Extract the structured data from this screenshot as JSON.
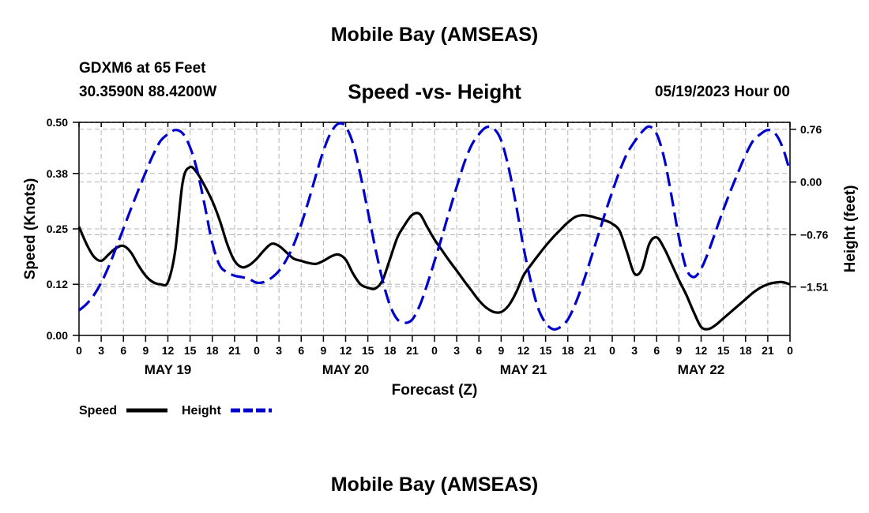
{
  "header": {
    "title": "Mobile Bay (AMSEAS)",
    "station": "GDXM6 at 65 Feet",
    "coordinates": "30.3590N  88.4200W",
    "chart_title": "Speed -vs- Height",
    "run_time": "05/19/2023 Hour 00"
  },
  "footer": {
    "title": "Mobile Bay (AMSEAS)"
  },
  "colors": {
    "speed": "#000000",
    "height": "#0000cc",
    "grid": "#b4b4b4"
  },
  "chart_data": {
    "type": "line",
    "title": "Speed -vs- Height",
    "xlabel": "Forecast (Z)",
    "ylabel": "Speed (Knots)",
    "y2label": "Height (feet)",
    "xlim": [
      0,
      96
    ],
    "ylim": [
      0,
      0.5
    ],
    "y2lim": [
      -2.21,
      0.86
    ],
    "grid": true,
    "legend_position": "bottom-left",
    "x_ticks": [
      0,
      3,
      6,
      9,
      12,
      15,
      18,
      21,
      24,
      27,
      30,
      33,
      36,
      39,
      42,
      45,
      48,
      51,
      54,
      57,
      60,
      63,
      66,
      69,
      72,
      75,
      78,
      81,
      84,
      87,
      90,
      93,
      96
    ],
    "x_tick_labels": [
      "0",
      "3",
      "6",
      "9",
      "12",
      "15",
      "18",
      "21",
      "0",
      "3",
      "6",
      "9",
      "12",
      "15",
      "18",
      "21",
      "0",
      "3",
      "6",
      "9",
      "12",
      "15",
      "18",
      "21",
      "0",
      "3",
      "6",
      "9",
      "12",
      "15",
      "18",
      "21",
      "0"
    ],
    "date_labels": [
      {
        "x": 12,
        "label": "MAY 19"
      },
      {
        "x": 36,
        "label": "MAY 20"
      },
      {
        "x": 60,
        "label": "MAY 21"
      },
      {
        "x": 84,
        "label": "MAY 22"
      }
    ],
    "y_ticks": [
      0.0,
      0.12,
      0.25,
      0.38,
      0.5
    ],
    "y_tick_labels": [
      "0.00",
      "0.12",
      "0.25",
      "0.38",
      "0.50"
    ],
    "y2_ticks": [
      0.76,
      0.0,
      -0.76,
      -1.51
    ],
    "y2_tick_labels": [
      "0.76",
      "0.00",
      "−0.76",
      "−1.51"
    ],
    "series": [
      {
        "name": "Speed",
        "axis": "left",
        "style": "solid",
        "x": [
          0,
          1,
          2,
          3,
          4,
          5,
          6,
          7,
          8,
          9,
          10,
          11,
          12,
          13,
          14,
          15,
          16,
          17,
          18,
          19,
          20,
          21,
          22,
          23,
          24,
          25,
          26,
          27,
          28,
          29,
          30,
          31,
          32,
          33,
          34,
          35,
          36,
          37,
          38,
          39,
          40,
          41,
          42,
          43,
          44,
          45,
          46,
          47,
          48,
          49,
          50,
          51,
          52,
          53,
          54,
          55,
          56,
          57,
          58,
          59,
          60,
          61,
          62,
          63,
          64,
          65,
          66,
          67,
          68,
          69,
          70,
          71,
          72,
          73,
          74,
          75,
          76,
          77,
          78,
          79,
          80,
          81,
          82,
          83,
          84,
          85,
          86,
          87,
          88,
          89,
          90,
          91,
          92,
          93,
          94,
          95,
          96
        ],
        "values": [
          0.255,
          0.215,
          0.185,
          0.175,
          0.19,
          0.205,
          0.21,
          0.195,
          0.165,
          0.14,
          0.125,
          0.12,
          0.125,
          0.2,
          0.36,
          0.395,
          0.38,
          0.35,
          0.315,
          0.27,
          0.215,
          0.175,
          0.16,
          0.165,
          0.18,
          0.2,
          0.215,
          0.21,
          0.195,
          0.18,
          0.175,
          0.17,
          0.168,
          0.175,
          0.185,
          0.19,
          0.178,
          0.145,
          0.12,
          0.112,
          0.11,
          0.13,
          0.18,
          0.23,
          0.26,
          0.283,
          0.285,
          0.255,
          0.225,
          0.2,
          0.175,
          0.152,
          0.128,
          0.105,
          0.082,
          0.065,
          0.055,
          0.055,
          0.07,
          0.1,
          0.14,
          0.165,
          0.188,
          0.21,
          0.23,
          0.248,
          0.265,
          0.278,
          0.282,
          0.28,
          0.275,
          0.27,
          0.262,
          0.245,
          0.195,
          0.145,
          0.155,
          0.215,
          0.23,
          0.205,
          0.168,
          0.13,
          0.095,
          0.055,
          0.02,
          0.015,
          0.025,
          0.04,
          0.055,
          0.07,
          0.085,
          0.1,
          0.112,
          0.12,
          0.124,
          0.125,
          0.12
        ]
      },
      {
        "name": "Height",
        "axis": "right",
        "style": "dashed",
        "x": [
          0,
          1,
          2,
          3,
          4,
          5,
          6,
          7,
          8,
          9,
          10,
          11,
          12,
          13,
          14,
          15,
          16,
          17,
          18,
          19,
          20,
          21,
          22,
          23,
          24,
          25,
          26,
          27,
          28,
          29,
          30,
          31,
          32,
          33,
          34,
          35,
          36,
          37,
          38,
          39,
          40,
          41,
          42,
          43,
          44,
          45,
          46,
          47,
          48,
          49,
          50,
          51,
          52,
          53,
          54,
          55,
          56,
          57,
          58,
          59,
          60,
          61,
          62,
          63,
          64,
          65,
          66,
          67,
          68,
          69,
          70,
          71,
          72,
          73,
          74,
          75,
          76,
          77,
          78,
          79,
          80,
          81,
          82,
          83,
          84,
          85,
          86,
          87,
          88,
          89,
          90,
          91,
          92,
          93,
          94,
          95,
          96
        ],
        "values": [
          -1.85,
          -1.76,
          -1.63,
          -1.45,
          -1.22,
          -0.95,
          -0.67,
          -0.39,
          -0.12,
          0.14,
          0.39,
          0.59,
          0.69,
          0.75,
          0.7,
          0.5,
          0.15,
          -0.35,
          -0.88,
          -1.2,
          -1.3,
          -1.35,
          -1.37,
          -1.4,
          -1.45,
          -1.44,
          -1.38,
          -1.28,
          -1.12,
          -0.9,
          -0.61,
          -0.27,
          0.1,
          0.45,
          0.71,
          0.84,
          0.8,
          0.55,
          0.1,
          -0.42,
          -0.95,
          -1.42,
          -1.78,
          -1.98,
          -2.03,
          -1.98,
          -1.78,
          -1.48,
          -1.14,
          -0.79,
          -0.42,
          -0.07,
          0.27,
          0.53,
          0.69,
          0.79,
          0.77,
          0.6,
          0.21,
          -0.32,
          -0.93,
          -1.43,
          -1.82,
          -2.03,
          -2.12,
          -2.09,
          -1.98,
          -1.76,
          -1.47,
          -1.14,
          -0.8,
          -0.46,
          -0.14,
          0.16,
          0.41,
          0.58,
          0.72,
          0.8,
          0.69,
          0.35,
          -0.2,
          -0.8,
          -1.25,
          -1.37,
          -1.25,
          -1.0,
          -0.7,
          -0.4,
          -0.12,
          0.14,
          0.39,
          0.59,
          0.69,
          0.75,
          0.7,
          0.5,
          0.15
        ]
      }
    ]
  }
}
